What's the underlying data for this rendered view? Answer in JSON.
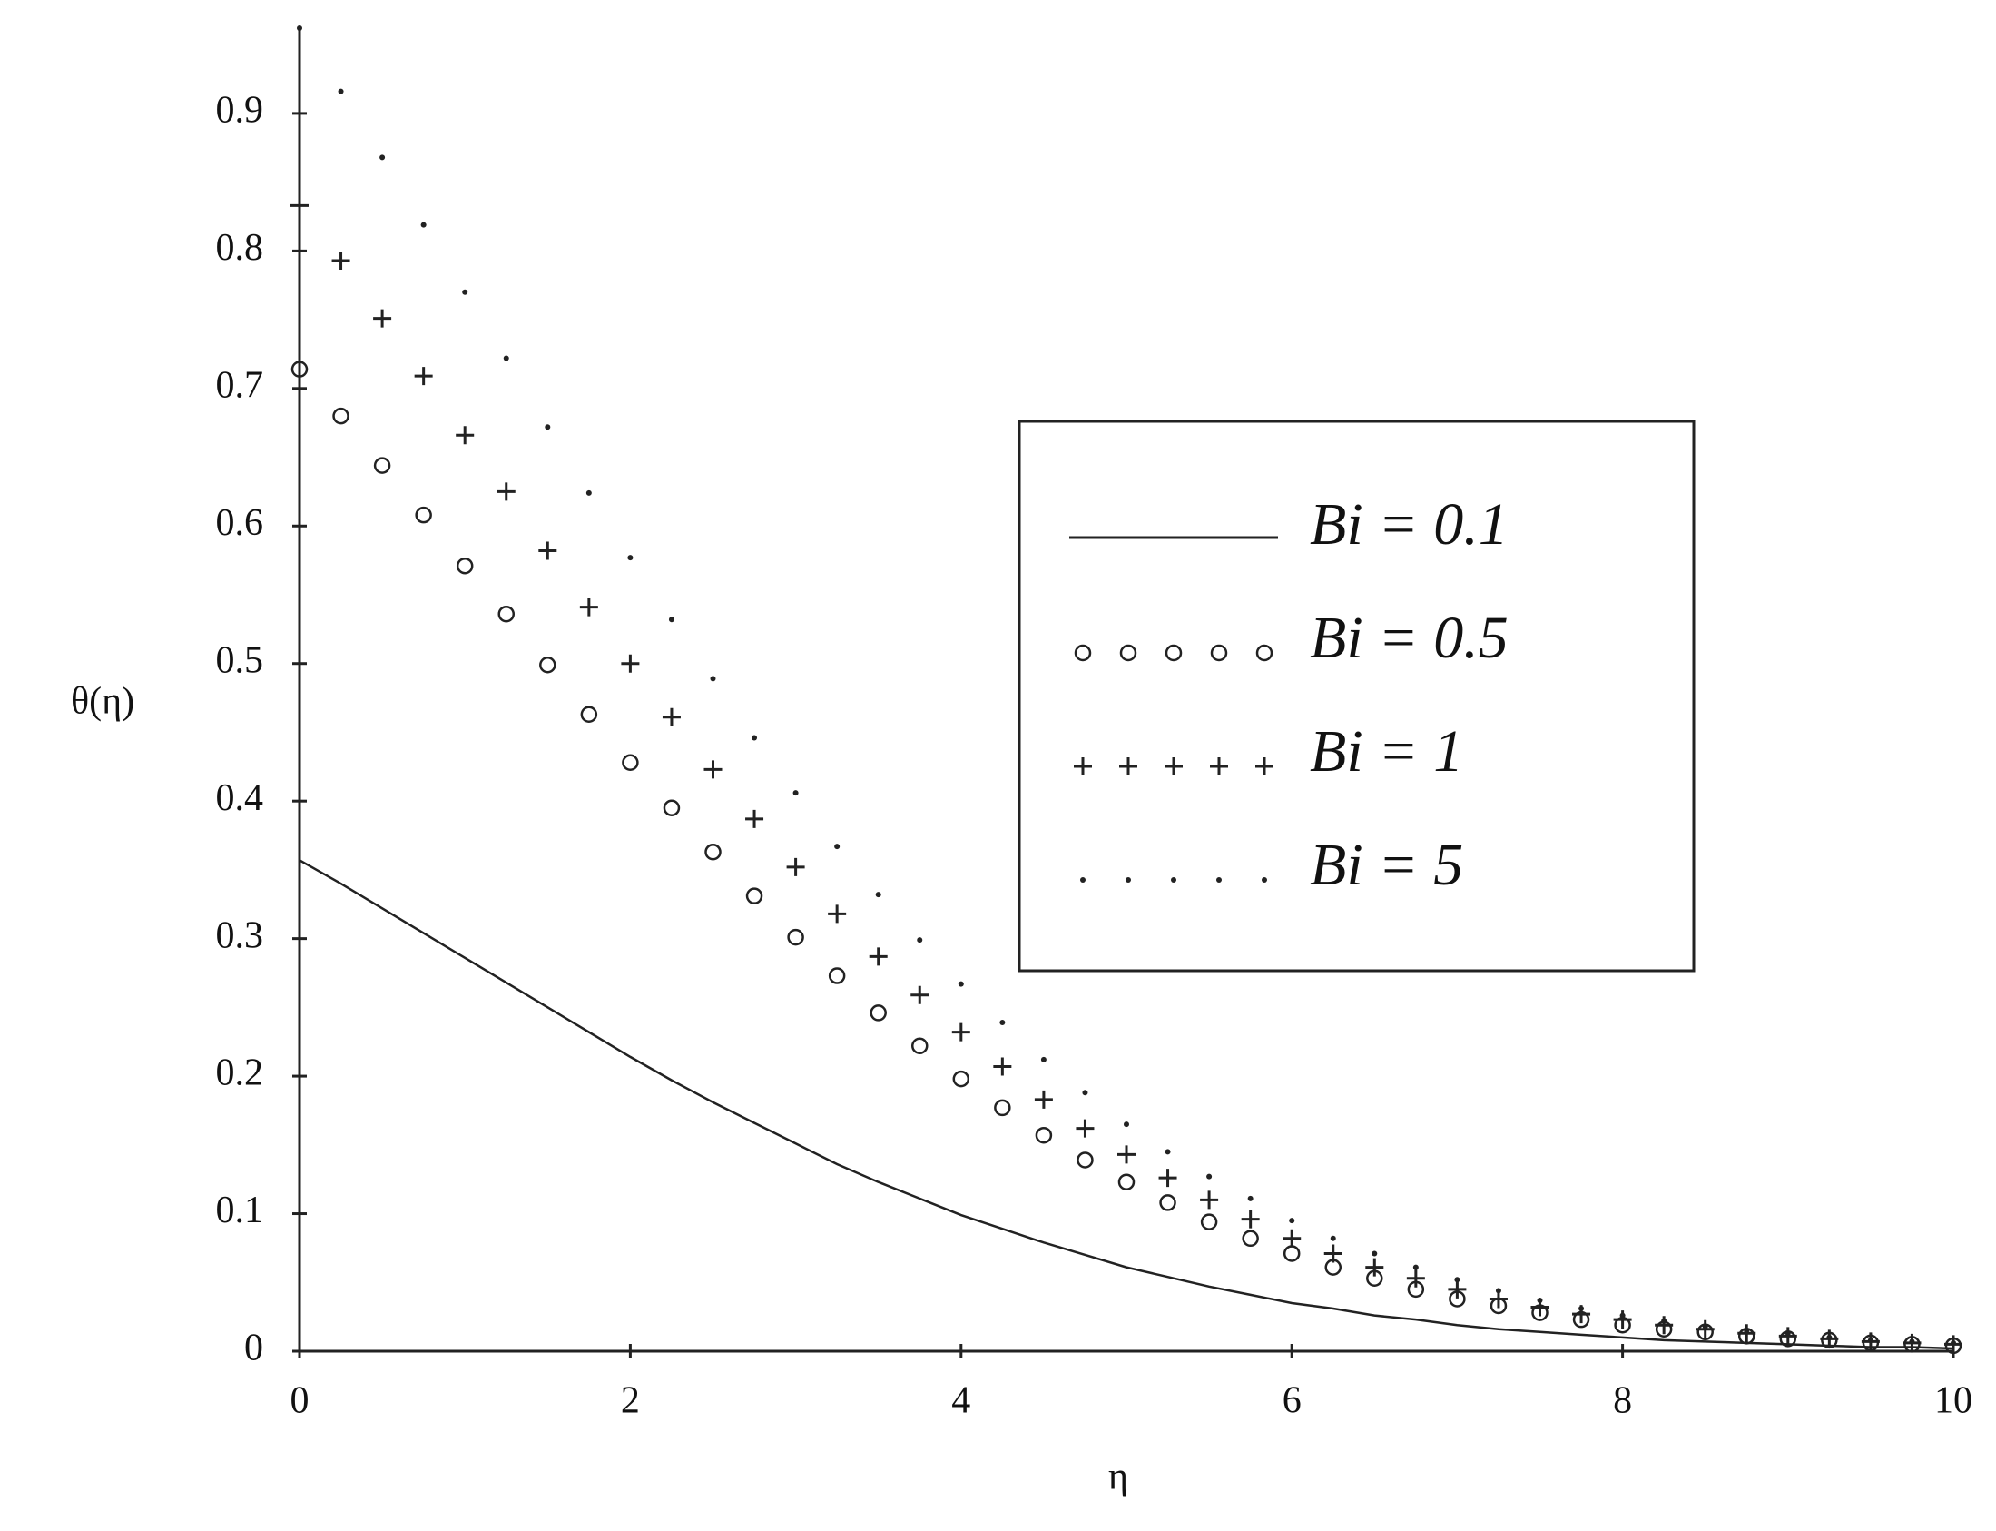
{
  "chart_data": {
    "type": "line",
    "x_label": "η",
    "y_label": "θ(η)",
    "xlim": [
      0,
      10
    ],
    "ylim": [
      0,
      0.962
    ],
    "xticks": [
      0,
      2,
      4,
      6,
      8,
      10
    ],
    "yticks": [
      0,
      0.1,
      0.2,
      0.3,
      0.4,
      0.5,
      0.6,
      0.7,
      0.8,
      0.9
    ],
    "grid": false,
    "legend": "right",
    "x": [
      0,
      0.25,
      0.5,
      0.75,
      1,
      1.25,
      1.5,
      1.75,
      2,
      2.25,
      2.5,
      2.75,
      3,
      3.25,
      3.5,
      3.75,
      4,
      4.25,
      4.5,
      4.75,
      5,
      5.25,
      5.5,
      5.75,
      6,
      6.25,
      6.5,
      6.75,
      7,
      7.25,
      7.5,
      7.75,
      8,
      8.25,
      8.5,
      8.75,
      9,
      9.25,
      9.5,
      9.75,
      10
    ],
    "series": [
      {
        "name": "Bi = 0.1",
        "color": "#222222",
        "style": "line",
        "values": [
          0.357,
          0.34,
          0.322,
          0.304,
          0.286,
          0.268,
          0.25,
          0.232,
          0.214,
          0.197,
          0.181,
          0.166,
          0.151,
          0.136,
          0.123,
          0.111,
          0.099,
          0.089,
          0.079,
          0.07,
          0.061,
          0.054,
          0.047,
          0.041,
          0.035,
          0.031,
          0.026,
          0.023,
          0.019,
          0.016,
          0.014,
          0.012,
          0.01,
          0.008,
          0.007,
          0.006,
          0.005,
          0.004,
          0.003,
          0.003,
          0.002
        ]
      },
      {
        "name": "Bi = 0.5",
        "color": "#222222",
        "style": "circle",
        "values": [
          0.714,
          0.68,
          0.644,
          0.608,
          0.571,
          0.536,
          0.499,
          0.463,
          0.428,
          0.395,
          0.363,
          0.331,
          0.301,
          0.273,
          0.246,
          0.222,
          0.198,
          0.177,
          0.157,
          0.139,
          0.123,
          0.108,
          0.094,
          0.082,
          0.071,
          0.061,
          0.053,
          0.045,
          0.038,
          0.033,
          0.028,
          0.023,
          0.019,
          0.016,
          0.014,
          0.011,
          0.009,
          0.008,
          0.006,
          0.005,
          0.004
        ]
      },
      {
        "name": "Bi = 1",
        "color": "#222222",
        "style": "plus",
        "values": [
          0.833,
          0.793,
          0.751,
          0.709,
          0.666,
          0.625,
          0.582,
          0.541,
          0.5,
          0.461,
          0.423,
          0.387,
          0.352,
          0.318,
          0.287,
          0.259,
          0.232,
          0.207,
          0.183,
          0.162,
          0.143,
          0.126,
          0.11,
          0.096,
          0.082,
          0.071,
          0.061,
          0.053,
          0.045,
          0.038,
          0.032,
          0.027,
          0.023,
          0.019,
          0.016,
          0.013,
          0.011,
          0.009,
          0.007,
          0.006,
          0.005
        ]
      },
      {
        "name": "Bi = 5",
        "color": "#222222",
        "style": "dot",
        "values": [
          0.962,
          0.916,
          0.868,
          0.819,
          0.77,
          0.722,
          0.672,
          0.624,
          0.577,
          0.532,
          0.489,
          0.446,
          0.406,
          0.367,
          0.332,
          0.299,
          0.267,
          0.239,
          0.212,
          0.188,
          0.165,
          0.145,
          0.127,
          0.111,
          0.095,
          0.082,
          0.071,
          0.061,
          0.052,
          0.044,
          0.037,
          0.031,
          0.026,
          0.022,
          0.018,
          0.015,
          0.013,
          0.01,
          0.008,
          0.007,
          0.006
        ]
      }
    ]
  }
}
